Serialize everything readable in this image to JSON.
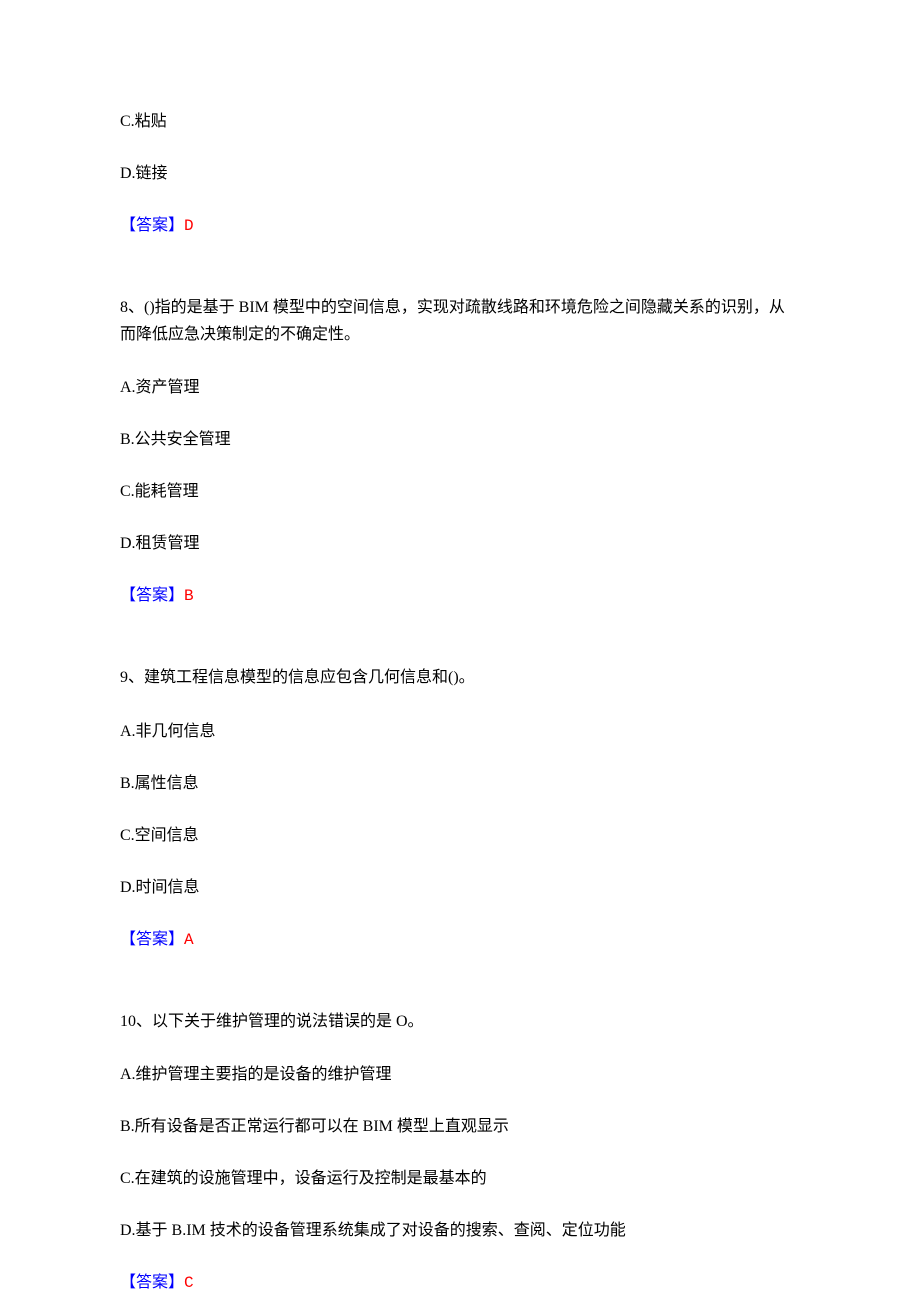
{
  "q7_partial": {
    "optC": "C.粘贴",
    "optD": "D.链接",
    "answer_label": "【答案】",
    "answer_value": "D"
  },
  "q8": {
    "text": "8、()指的是基于 BIM 模型中的空间信息，实现对疏散线路和环境危险之间隐藏关系的识别，从而降低应急决策制定的不确定性。",
    "optA": "A.资产管理",
    "optB": "B.公共安全管理",
    "optC": "C.能耗管理",
    "optD": "D.租赁管理",
    "answer_label": "【答案】",
    "answer_value": "B"
  },
  "q9": {
    "text": "9、建筑工程信息模型的信息应包含几何信息和()。",
    "optA": "A.非几何信息",
    "optB": "B.属性信息",
    "optC": "C.空间信息",
    "optD": "D.时间信息",
    "answer_label": "【答案】",
    "answer_value": "A"
  },
  "q10": {
    "text": "10、以下关于维护管理的说法错误的是 O。",
    "optA": "A.维护管理主要指的是设备的维护管理",
    "optB": "B.所有设备是否正常运行都可以在 BIM 模型上直观显示",
    "optC": "C.在建筑的设施管理中，设备运行及控制是最基本的",
    "optD": "D.基于 B.IM 技术的设备管理系统集成了对设备的搜索、查阅、定位功能",
    "answer_label": "【答案】",
    "answer_value": "C"
  }
}
